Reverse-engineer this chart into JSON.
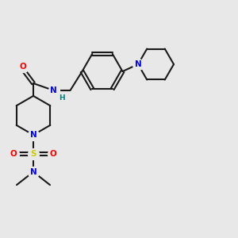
{
  "bg_color": "#e8e8e8",
  "bond_color": "#1a1a1a",
  "atom_colors": {
    "N": "#0000ff",
    "O": "#ff0000",
    "S": "#cccc00",
    "C": "#1a1a1a",
    "H": "#008080"
  },
  "figsize": [
    3.0,
    3.0
  ],
  "dpi": 100
}
